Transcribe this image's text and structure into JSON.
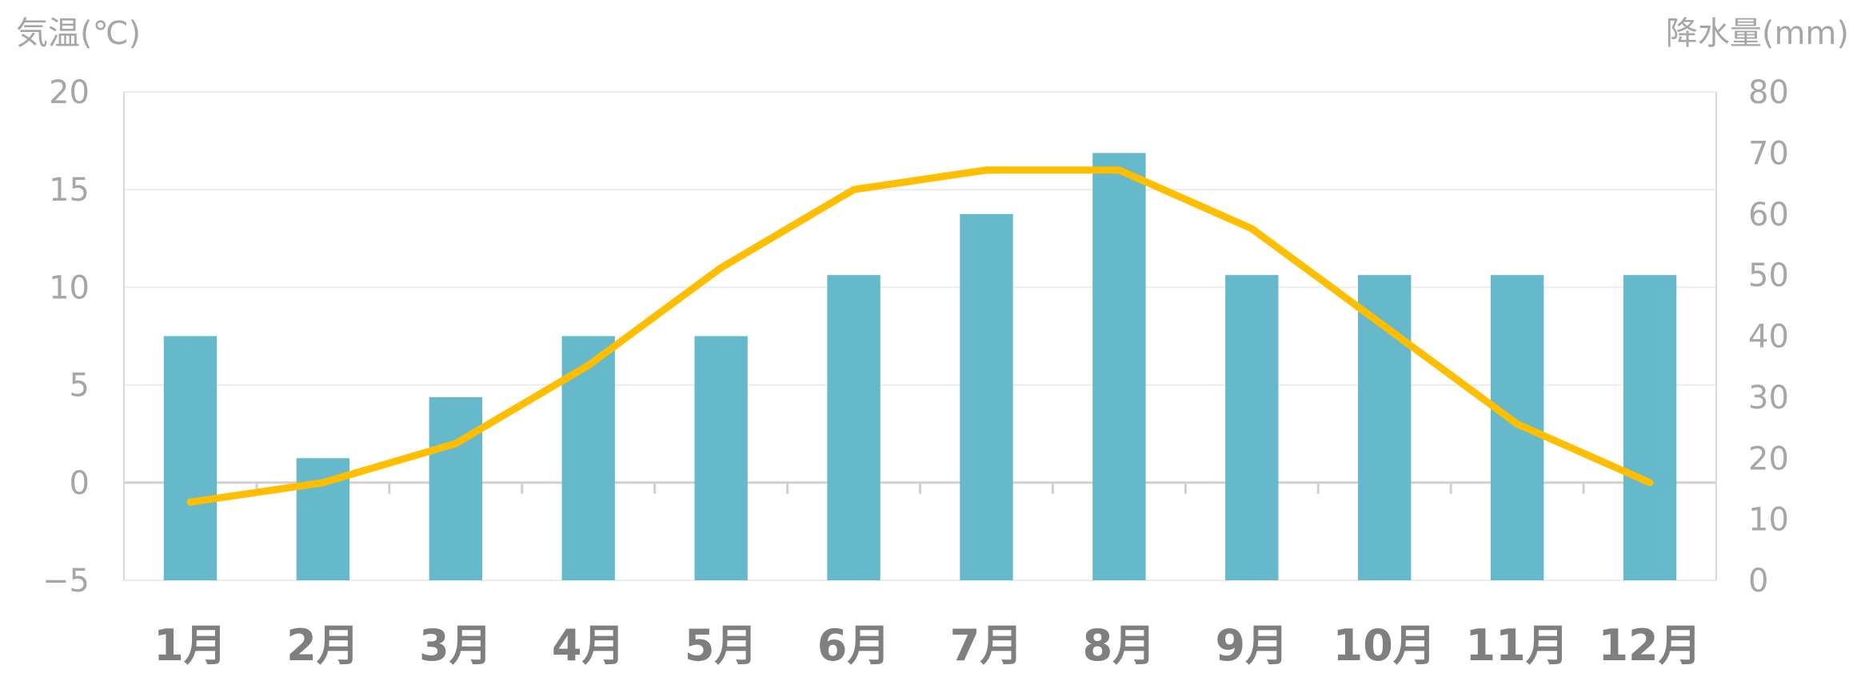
{
  "chart_data": {
    "type": "bar",
    "categories": [
      "1月",
      "2月",
      "3月",
      "4月",
      "5月",
      "6月",
      "7月",
      "8月",
      "9月",
      "10月",
      "11月",
      "12月"
    ],
    "left_axis_title": "気温(℃)",
    "right_axis_title": "降水量(mm)",
    "left_ylim": [
      -5,
      20
    ],
    "right_ylim": [
      0,
      80
    ],
    "left_ticks": [
      "20",
      "15",
      "10",
      "5",
      "0",
      "−5"
    ],
    "right_ticks": [
      "80",
      "70",
      "60",
      "50",
      "40",
      "30",
      "20",
      "10",
      "0"
    ],
    "series": [
      {
        "type": "bar",
        "axis": "right",
        "color": "#66b8cb",
        "values": [
          40,
          20,
          30,
          40,
          40,
          50,
          60,
          70,
          50,
          50,
          50,
          50
        ]
      },
      {
        "type": "line",
        "axis": "left",
        "color": "#ffbf00",
        "values": [
          -1,
          0,
          2,
          6,
          11,
          15,
          16,
          16,
          13,
          8,
          3,
          0
        ]
      }
    ],
    "grid": true
  }
}
